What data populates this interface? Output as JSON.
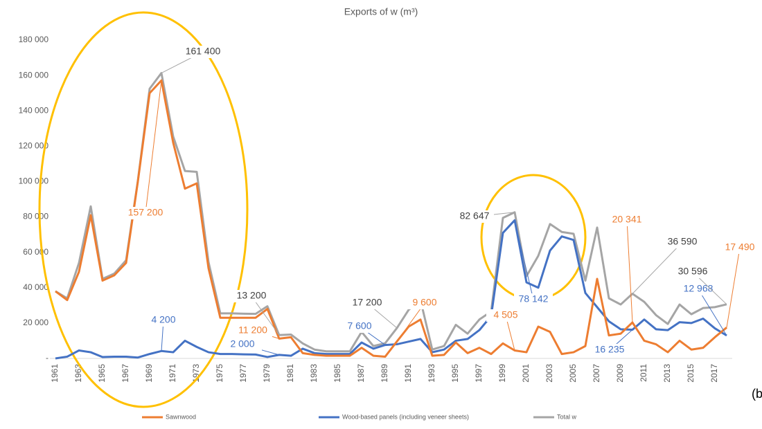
{
  "chart_data": {
    "type": "line",
    "title": "Exports of w (m³)",
    "categories": [
      "1961",
      null,
      "1963",
      null,
      "1965",
      null,
      "1967",
      null,
      "1969",
      null,
      "1971",
      null,
      "1973",
      null,
      "1975",
      null,
      "1977",
      null,
      "1979",
      null,
      "1981",
      null,
      "1983",
      null,
      "1985",
      null,
      "1987",
      null,
      "1989",
      null,
      "1991",
      null,
      "1993",
      null,
      "1995",
      null,
      "1997",
      null,
      "1999",
      null,
      "2001",
      null,
      "2003",
      null,
      "2005",
      null,
      "2007",
      null,
      "2009",
      null,
      "2011",
      null,
      "2013",
      null,
      "2015",
      null,
      "2017",
      null
    ],
    "series": [
      {
        "name": "Sawnwood",
        "color": "#ed7d31",
        "values": [
          38000,
          33000,
          49000,
          81000,
          44000,
          47000,
          54000,
          100000,
          150000,
          157200,
          122000,
          96000,
          99000,
          51000,
          23000,
          23000,
          23000,
          23000,
          28000,
          11200,
          12000,
          3000,
          2000,
          1500,
          1500,
          1500,
          6000,
          1500,
          1000,
          9600,
          18000,
          22000,
          1500,
          2000,
          9000,
          3000,
          6000,
          2500,
          8500,
          4505,
          3500,
          18000,
          15000,
          2500,
          3500,
          7000,
          45000,
          13000,
          14000,
          20341,
          10000,
          8000,
          3500,
          10000,
          5000,
          6000,
          12000,
          17490
        ],
        "value_labels": [
          null,
          null,
          null,
          null,
          null,
          null,
          null,
          null,
          null,
          "157 200",
          null,
          null,
          null,
          null,
          null,
          null,
          null,
          null,
          null,
          "11 200",
          null,
          null,
          null,
          null,
          null,
          null,
          null,
          null,
          null,
          "9 600",
          null,
          null,
          null,
          null,
          null,
          null,
          null,
          null,
          null,
          "4 505",
          null,
          null,
          null,
          null,
          null,
          null,
          null,
          null,
          null,
          "20 341",
          null,
          null,
          null,
          null,
          null,
          null,
          null,
          "17 490"
        ]
      },
      {
        "name": "Wood-based panels (including veneer sheets)",
        "color": "#4472c4",
        "values": [
          0,
          1000,
          4500,
          3500,
          800,
          1000,
          1000,
          500,
          2500,
          4200,
          3500,
          10000,
          6500,
          3500,
          2500,
          2500,
          2300,
          2200,
          800,
          2000,
          1500,
          5500,
          3000,
          2500,
          2500,
          2500,
          9000,
          5500,
          7600,
          8000,
          9500,
          11000,
          3500,
          5000,
          10000,
          11000,
          16000,
          24000,
          71000,
          78142,
          43000,
          40000,
          61000,
          69000,
          67000,
          37000,
          29000,
          21000,
          16500,
          16235,
          22000,
          16500,
          16000,
          20500,
          20000,
          22500,
          17000,
          12968
        ],
        "value_labels": [
          null,
          null,
          null,
          null,
          null,
          null,
          null,
          null,
          null,
          "4 200",
          null,
          null,
          null,
          null,
          null,
          null,
          null,
          null,
          null,
          "2 000",
          null,
          null,
          null,
          null,
          null,
          null,
          null,
          null,
          "7 600",
          null,
          null,
          null,
          null,
          null,
          null,
          null,
          null,
          null,
          null,
          "78 142",
          null,
          null,
          null,
          null,
          null,
          null,
          null,
          null,
          null,
          "16 235",
          null,
          null,
          null,
          null,
          null,
          null,
          null,
          "12 968"
        ]
      },
      {
        "name": "Total w",
        "color": "#a5a5a5",
        "values": [
          38000,
          34000,
          54000,
          86000,
          45000,
          48000,
          55500,
          100500,
          152500,
          161400,
          125500,
          106000,
          105500,
          54500,
          25500,
          25500,
          25300,
          25200,
          29500,
          13200,
          13500,
          8500,
          5000,
          4000,
          4000,
          4000,
          15000,
          7000,
          8600,
          17200,
          27500,
          33000,
          5000,
          7000,
          19000,
          14000,
          22000,
          26500,
          79500,
          82647,
          46500,
          58000,
          76000,
          71500,
          70500,
          44000,
          74000,
          34000,
          30500,
          36590,
          32000,
          24500,
          19500,
          30500,
          25000,
          28500,
          29000,
          30596
        ],
        "value_labels": [
          null,
          null,
          null,
          null,
          null,
          null,
          null,
          null,
          null,
          "161 400",
          null,
          null,
          null,
          null,
          null,
          null,
          null,
          null,
          null,
          "13 200",
          null,
          null,
          null,
          null,
          null,
          null,
          null,
          null,
          null,
          "17 200",
          null,
          null,
          null,
          null,
          null,
          null,
          null,
          null,
          null,
          "82 647",
          null,
          null,
          null,
          null,
          null,
          null,
          null,
          null,
          null,
          "36 590",
          null,
          null,
          null,
          null,
          null,
          null,
          null,
          "30 596"
        ]
      }
    ],
    "ylim": [
      0,
      180000
    ],
    "yticks": [
      {
        "value": 0,
        "label": "-"
      },
      {
        "value": 20000,
        "label": "20 000"
      },
      {
        "value": 40000,
        "label": "40 000"
      },
      {
        "value": 60000,
        "label": "60 000"
      },
      {
        "value": 80000,
        "label": "80 000"
      },
      {
        "value": 100000,
        "label": "100 000"
      },
      {
        "value": 120000,
        "label": "120 000"
      },
      {
        "value": 140000,
        "label": "140 000"
      },
      {
        "value": 160000,
        "label": "160 000"
      },
      {
        "value": 180000,
        "label": "180 000"
      }
    ],
    "annotations": [
      "(b"
    ]
  }
}
